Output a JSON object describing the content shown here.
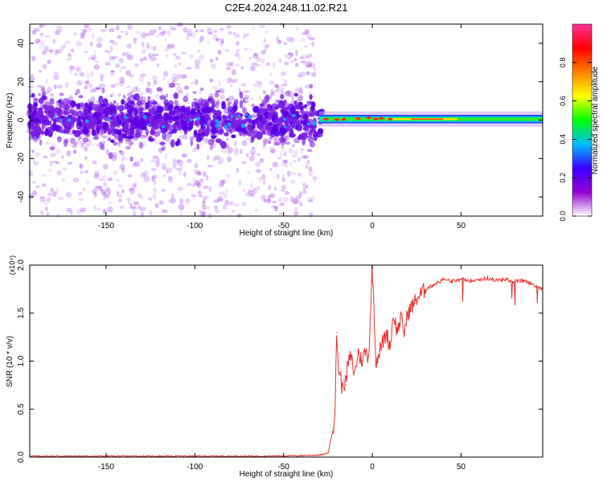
{
  "title": "C2E4.2024.248.11.02.R21",
  "chart_data": [
    {
      "type": "heatmap",
      "name": "spectrogram",
      "xlabel": "Height of straight line (km)",
      "ylabel": "Frequency (Hz)",
      "xlim": [
        -193,
        96
      ],
      "ylim": [
        -50,
        50
      ],
      "x_ticks": [
        -150,
        -100,
        -50,
        0,
        50
      ],
      "y_ticks": [
        -40,
        -20,
        0,
        20,
        40
      ],
      "colorbar": {
        "label": "Normalized spectral amplitude",
        "range": [
          0,
          1
        ],
        "ticks": [
          0.0,
          0.2,
          0.4,
          0.6,
          0.8
        ],
        "tick_labels": [
          "0.0",
          "0.2",
          "0.4",
          "0.6",
          "0.8"
        ],
        "colors": [
          "#ffffff",
          "#9400d3",
          "#3c00ff",
          "#00bfff",
          "#00ff00",
          "#ffff00",
          "#ff8000",
          "#ff0000",
          "#ff3399"
        ]
      },
      "features": {
        "noise_region_x": [
          -193,
          -32
        ],
        "noise_band_hz": [
          -10,
          10
        ],
        "carrier_region_x": [
          -32,
          96
        ],
        "carrier_frequency_hz": 0.5
      }
    },
    {
      "type": "line",
      "name": "snr",
      "xlabel": "Height of straight line (km)",
      "ylabel": "SNR (10 * v/v)",
      "y_multiplier": "(x10⁴)",
      "xlim": [
        -193,
        96
      ],
      "ylim": [
        0,
        2.0
      ],
      "x_ticks": [
        -150,
        -100,
        -50,
        0,
        50
      ],
      "y_ticks": [
        0.0,
        0.5,
        1.0,
        1.5,
        2.0
      ],
      "y_tick_labels": [
        "0.0",
        "0.5",
        "1.0",
        "1.5",
        "2.0"
      ],
      "color": "#e8312f",
      "series": [
        {
          "x": [
            -193,
            -150,
            -100,
            -60,
            -40,
            -30,
            -25,
            -22,
            -21,
            -20,
            -19,
            -18,
            -17,
            -16,
            -15,
            -14,
            -12,
            -10,
            -8,
            -6,
            -4,
            -2,
            0,
            2,
            4,
            6,
            8,
            10,
            12,
            14,
            16,
            18,
            20,
            25,
            30,
            35,
            40,
            45,
            50,
            55,
            60,
            65,
            70,
            75,
            80,
            85,
            90,
            94,
            96
          ],
          "y": [
            0.01,
            0.01,
            0.01,
            0.01,
            0.015,
            0.02,
            0.04,
            0.3,
            0.5,
            1.3,
            0.9,
            0.85,
            0.7,
            0.8,
            0.75,
            0.95,
            1.05,
            0.85,
            1.1,
            1.0,
            1.1,
            1.05,
            2.0,
            1.0,
            1.1,
            1.2,
            1.3,
            1.15,
            1.5,
            1.3,
            1.45,
            1.3,
            1.5,
            1.65,
            1.75,
            1.8,
            1.85,
            1.83,
            1.85,
            1.84,
            1.85,
            1.86,
            1.84,
            1.85,
            1.83,
            1.84,
            1.8,
            1.77,
            1.75
          ]
        }
      ]
    }
  ]
}
